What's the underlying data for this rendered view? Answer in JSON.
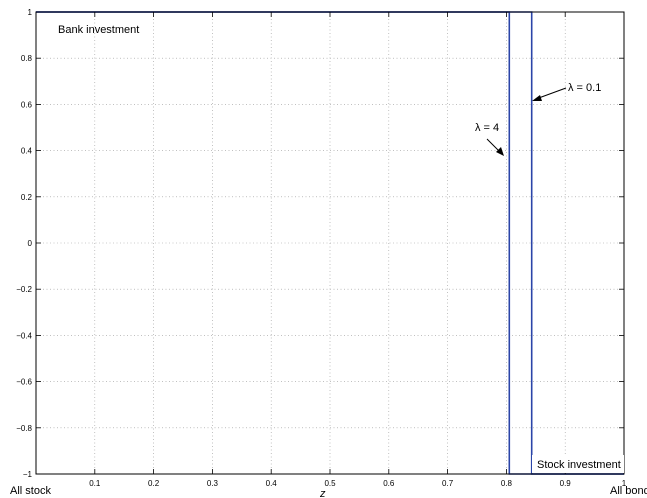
{
  "chart_data": {
    "type": "line",
    "xlabel": "z",
    "ylabel": "",
    "title": "",
    "xlim": [
      0,
      1
    ],
    "ylim": [
      -1,
      1
    ],
    "grid": true,
    "x_ticks": [
      0.1,
      0.2,
      0.3,
      0.4,
      0.5,
      0.6,
      0.7,
      0.8,
      0.9,
      1
    ],
    "x_tick_labels": [
      "0.1",
      "0.2",
      "0.3",
      "0.4",
      "0.5",
      "0.6",
      "0.7",
      "0.8",
      "0.9",
      "1"
    ],
    "y_ticks": [
      -1,
      -0.8,
      -0.6,
      -0.4,
      -0.2,
      0,
      0.2,
      0.4,
      0.6,
      0.8,
      1
    ],
    "y_tick_labels": [
      "−1",
      "−0.8",
      "−0.6",
      "−0.4",
      "−0.2",
      "0",
      "0.2",
      "0.4",
      "0.6",
      "0.8",
      "1"
    ],
    "series": [
      {
        "name": "λ = 4",
        "x": [
          0,
          0.805,
          0.805,
          1
        ],
        "y": [
          1,
          1,
          -1,
          -1
        ]
      },
      {
        "name": "λ = 0.1",
        "x": [
          0,
          0.843,
          0.843,
          1
        ],
        "y": [
          1,
          1,
          -1,
          -1
        ]
      }
    ],
    "line_color": "#2b45a8",
    "annotations": {
      "bank": "Bank investment",
      "stock": "Stock investment",
      "all_stock": "All stock",
      "all_bond": "All bond",
      "lambda4": "λ = 4",
      "lambda01": "λ = 0.1"
    }
  }
}
